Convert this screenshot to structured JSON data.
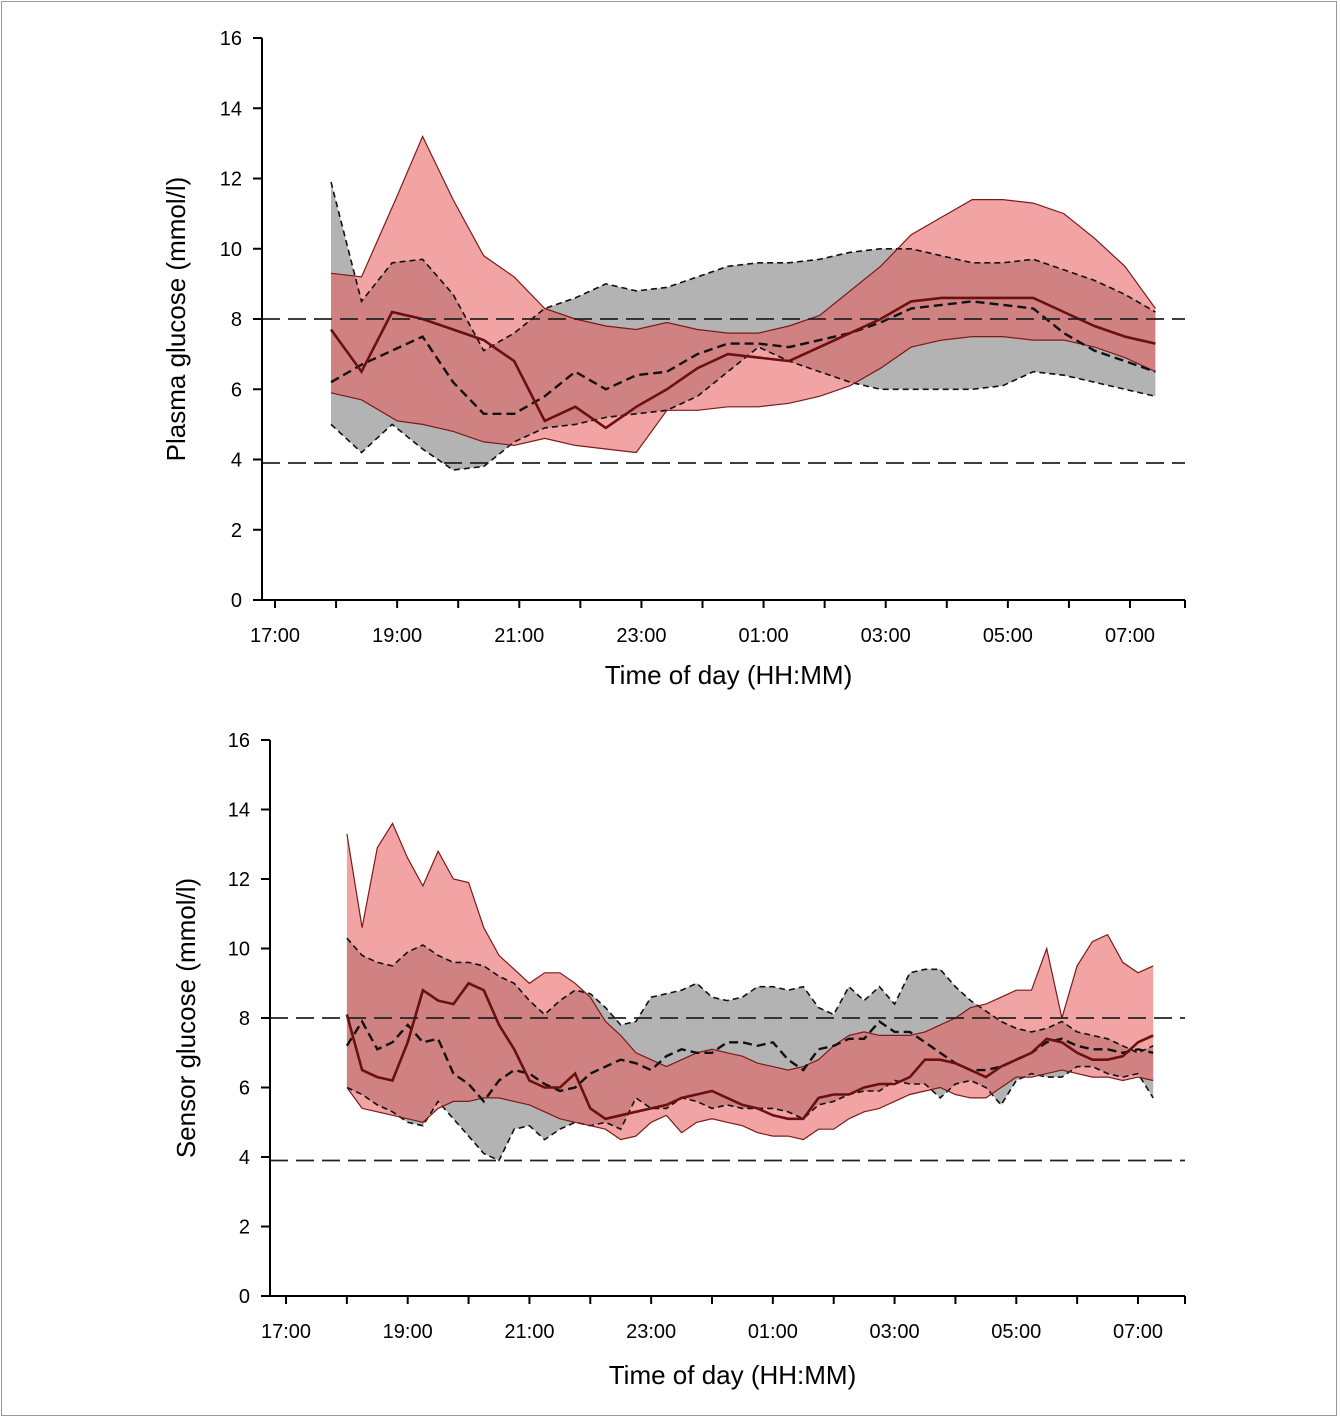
{
  "chart_data": [
    {
      "type": "area",
      "xlabel": "Time of day (HH:MM)",
      "ylabel": "Plasma glucose (mmol/l)",
      "xticks": [
        "17:00",
        "19:00",
        "21:00",
        "23:00",
        "01:00",
        "03:00",
        "05:00",
        "07:00"
      ],
      "yticks": [
        0,
        2,
        4,
        6,
        8,
        10,
        12,
        14,
        16
      ],
      "ylim": [
        0,
        16
      ],
      "reference_lines": [
        8.0,
        3.9
      ],
      "grid": false,
      "colors": {
        "red_band": "#f39a9a",
        "grey_band": "#b3b3b3",
        "overlap": "#b57575",
        "median_line": "#6b0f0f",
        "dashed_line": "#111111"
      },
      "series": [
        {
          "style": "red band (interquartile range)",
          "x": [
            "17:55",
            "18:25",
            "19:00",
            "19:25",
            "19:55",
            "20:25",
            "20:55",
            "21:25",
            "21:55",
            "22:25",
            "22:55",
            "23:25",
            "23:55",
            "00:25",
            "00:55",
            "01:25",
            "01:55",
            "02:25",
            "02:55",
            "03:25",
            "03:55",
            "04:25",
            "04:55",
            "05:25",
            "05:55",
            "06:25",
            "06:55",
            "07:25"
          ],
          "upper": [
            9.3,
            9.2,
            11.5,
            13.2,
            11.4,
            9.8,
            9.2,
            8.3,
            8.0,
            7.8,
            7.7,
            7.9,
            7.7,
            7.6,
            7.6,
            7.8,
            8.1,
            8.8,
            9.5,
            10.4,
            10.9,
            11.4,
            11.4,
            11.3,
            11.0,
            10.3,
            9.5,
            8.3
          ],
          "lower": [
            5.9,
            5.7,
            5.1,
            5.0,
            4.8,
            4.5,
            4.4,
            4.6,
            4.4,
            4.3,
            4.2,
            5.4,
            5.4,
            5.5,
            5.5,
            5.6,
            5.8,
            6.1,
            6.6,
            7.2,
            7.4,
            7.5,
            7.5,
            7.4,
            7.4,
            7.2,
            6.9,
            6.5
          ]
        },
        {
          "style": "red solid line (median)",
          "x": [
            "17:55",
            "18:25",
            "18:55",
            "19:25",
            "19:55",
            "20:25",
            "20:55",
            "21:25",
            "21:55",
            "22:25",
            "22:55",
            "23:25",
            "23:55",
            "00:25",
            "00:55",
            "01:25",
            "01:55",
            "02:25",
            "02:55",
            "03:25",
            "03:55",
            "04:25",
            "04:55",
            "05:25",
            "05:55",
            "06:25",
            "06:55",
            "07:25"
          ],
          "values": [
            7.7,
            6.5,
            8.2,
            8.0,
            7.7,
            7.4,
            6.8,
            5.1,
            5.5,
            4.9,
            5.5,
            6.0,
            6.6,
            7.0,
            6.9,
            6.8,
            7.2,
            7.6,
            8.0,
            8.5,
            8.6,
            8.6,
            8.6,
            8.6,
            8.2,
            7.8,
            7.5,
            7.3
          ]
        },
        {
          "style": "grey band (interquartile range)",
          "x": [
            "17:55",
            "18:25",
            "18:55",
            "19:25",
            "19:55",
            "20:25",
            "20:55",
            "21:25",
            "21:55",
            "22:25",
            "22:55",
            "23:25",
            "23:55",
            "00:25",
            "00:55",
            "01:25",
            "01:55",
            "02:25",
            "02:55",
            "03:25",
            "03:55",
            "04:25",
            "04:55",
            "05:25",
            "05:55",
            "06:25",
            "06:55",
            "07:25"
          ],
          "upper": [
            11.9,
            8.5,
            9.6,
            9.7,
            8.7,
            7.1,
            7.6,
            8.3,
            8.6,
            9.0,
            8.8,
            8.9,
            9.2,
            9.5,
            9.6,
            9.6,
            9.7,
            9.9,
            10.0,
            10.0,
            9.8,
            9.6,
            9.6,
            9.7,
            9.4,
            9.1,
            8.7,
            8.2
          ],
          "lower": [
            5.0,
            4.2,
            5.0,
            4.3,
            3.7,
            3.8,
            4.5,
            4.9,
            5.0,
            5.2,
            5.3,
            5.4,
            5.8,
            6.5,
            7.2,
            6.8,
            6.5,
            6.2,
            6.0,
            6.0,
            6.0,
            6.0,
            6.1,
            6.5,
            6.4,
            6.2,
            6.0,
            5.8
          ]
        },
        {
          "style": "black dashed line (median)",
          "x": [
            "17:55",
            "18:25",
            "18:55",
            "19:25",
            "19:55",
            "20:25",
            "20:55",
            "21:25",
            "21:55",
            "22:25",
            "22:55",
            "23:25",
            "23:55",
            "00:25",
            "00:55",
            "01:25",
            "01:55",
            "02:25",
            "02:55",
            "03:25",
            "03:55",
            "04:25",
            "04:55",
            "05:25",
            "05:55",
            "06:25",
            "06:55",
            "07:25"
          ],
          "values": [
            6.2,
            6.7,
            7.1,
            7.5,
            6.2,
            5.3,
            5.3,
            5.8,
            6.5,
            6.0,
            6.4,
            6.5,
            7.0,
            7.3,
            7.3,
            7.2,
            7.4,
            7.6,
            7.9,
            8.3,
            8.4,
            8.5,
            8.4,
            8.3,
            7.6,
            7.1,
            6.8,
            6.5
          ]
        }
      ]
    },
    {
      "type": "area",
      "xlabel": "Time of day (HH:MM)",
      "ylabel": "Sensor glucose (mmol/l)",
      "xticks": [
        "17:00",
        "19:00",
        "21:00",
        "23:00",
        "01:00",
        "03:00",
        "05:00",
        "07:00"
      ],
      "yticks": [
        0,
        2,
        4,
        6,
        8,
        10,
        12,
        14,
        16
      ],
      "ylim": [
        0,
        16
      ],
      "reference_lines": [
        8.0,
        3.9
      ],
      "grid": false,
      "colors": {
        "red_band": "#f39a9a",
        "grey_band": "#b3b3b3",
        "overlap": "#b57575",
        "median_line": "#6b0f0f",
        "dashed_line": "#111111"
      },
      "series": [
        {
          "style": "red band (interquartile range)",
          "x": [
            "18:00",
            "18:15",
            "18:30",
            "18:45",
            "19:00",
            "19:15",
            "19:30",
            "19:45",
            "20:00",
            "20:15",
            "20:30",
            "20:45",
            "21:00",
            "21:15",
            "21:30",
            "21:45",
            "22:00",
            "22:15",
            "22:30",
            "22:45",
            "23:00",
            "23:15",
            "23:30",
            "23:45",
            "00:00",
            "00:15",
            "00:30",
            "00:45",
            "01:00",
            "01:15",
            "01:30",
            "01:45",
            "02:00",
            "02:15",
            "02:30",
            "02:45",
            "03:00",
            "03:15",
            "03:30",
            "03:45",
            "04:00",
            "04:15",
            "04:30",
            "04:45",
            "05:00",
            "05:15",
            "05:30",
            "05:45",
            "06:00",
            "06:15",
            "06:30",
            "06:45",
            "07:00",
            "07:15"
          ],
          "upper": [
            13.3,
            10.6,
            12.9,
            13.6,
            12.6,
            11.8,
            12.8,
            12.0,
            11.9,
            10.6,
            9.8,
            9.4,
            9.0,
            9.3,
            9.3,
            9.0,
            8.6,
            7.9,
            7.5,
            7.0,
            6.8,
            6.6,
            6.8,
            7.0,
            7.1,
            7.0,
            6.9,
            6.7,
            6.6,
            6.5,
            6.6,
            6.8,
            7.2,
            7.5,
            7.6,
            7.5,
            7.5,
            7.5,
            7.6,
            7.8,
            8.0,
            8.3,
            8.4,
            8.6,
            8.8,
            8.8,
            10.0,
            8.0,
            9.5,
            10.2,
            10.4,
            9.6,
            9.3,
            9.5
          ],
          "lower": [
            6.0,
            5.4,
            5.3,
            5.2,
            5.1,
            5.0,
            5.4,
            5.6,
            5.6,
            5.7,
            5.7,
            5.6,
            5.5,
            5.3,
            5.1,
            5.0,
            4.9,
            4.8,
            4.5,
            4.6,
            5.0,
            5.2,
            4.7,
            5.0,
            5.1,
            5.0,
            4.9,
            4.7,
            4.6,
            4.6,
            4.5,
            4.8,
            4.8,
            5.1,
            5.3,
            5.4,
            5.6,
            5.8,
            5.9,
            6.0,
            5.8,
            5.7,
            5.7,
            6.0,
            6.3,
            6.3,
            6.4,
            6.5,
            6.4,
            6.3,
            6.3,
            6.2,
            6.3,
            6.2
          ]
        },
        {
          "style": "red solid line (median)",
          "x": [
            "18:00",
            "18:15",
            "18:30",
            "18:45",
            "19:00",
            "19:15",
            "19:30",
            "19:45",
            "20:00",
            "20:15",
            "20:30",
            "20:45",
            "21:00",
            "21:15",
            "21:30",
            "21:45",
            "22:00",
            "22:15",
            "22:30",
            "22:45",
            "23:00",
            "23:15",
            "23:30",
            "23:45",
            "00:00",
            "00:15",
            "00:30",
            "00:45",
            "01:00",
            "01:15",
            "01:30",
            "01:45",
            "02:00",
            "02:15",
            "02:30",
            "02:45",
            "03:00",
            "03:15",
            "03:30",
            "03:45",
            "04:00",
            "04:15",
            "04:30",
            "04:45",
            "05:00",
            "05:15",
            "05:30",
            "05:45",
            "06:00",
            "06:15",
            "06:30",
            "06:45",
            "07:00",
            "07:15"
          ],
          "values": [
            8.1,
            6.5,
            6.3,
            6.2,
            7.3,
            8.8,
            8.5,
            8.4,
            9.0,
            8.8,
            7.8,
            7.1,
            6.2,
            6.0,
            6.0,
            6.4,
            5.4,
            5.1,
            5.2,
            5.3,
            5.4,
            5.5,
            5.7,
            5.8,
            5.9,
            5.7,
            5.5,
            5.4,
            5.2,
            5.1,
            5.1,
            5.7,
            5.8,
            5.8,
            6.0,
            6.1,
            6.1,
            6.3,
            6.8,
            6.8,
            6.7,
            6.5,
            6.3,
            6.6,
            6.8,
            7.0,
            7.4,
            7.3,
            7.0,
            6.8,
            6.8,
            6.9,
            7.3,
            7.5
          ]
        },
        {
          "style": "grey band (interquartile range)",
          "x": [
            "18:00",
            "18:15",
            "18:30",
            "18:45",
            "19:00",
            "19:15",
            "19:30",
            "19:45",
            "20:00",
            "20:15",
            "20:30",
            "20:45",
            "21:00",
            "21:15",
            "21:30",
            "21:45",
            "22:00",
            "22:15",
            "22:30",
            "22:45",
            "23:00",
            "23:15",
            "23:30",
            "23:45",
            "00:00",
            "00:15",
            "00:30",
            "00:45",
            "01:00",
            "01:15",
            "01:30",
            "01:45",
            "02:00",
            "02:15",
            "02:30",
            "02:45",
            "03:00",
            "03:15",
            "03:30",
            "03:45",
            "04:00",
            "04:15",
            "04:30",
            "04:45",
            "05:00",
            "05:15",
            "05:30",
            "05:45",
            "06:00",
            "06:15",
            "06:30",
            "06:45",
            "07:00",
            "07:15"
          ],
          "upper": [
            10.3,
            9.8,
            9.6,
            9.5,
            9.9,
            10.1,
            9.8,
            9.6,
            9.6,
            9.5,
            9.2,
            9.0,
            8.5,
            8.1,
            8.5,
            8.8,
            8.7,
            8.3,
            7.8,
            7.9,
            8.6,
            8.7,
            8.8,
            9.0,
            8.6,
            8.5,
            8.6,
            8.9,
            8.9,
            8.8,
            8.9,
            8.3,
            8.1,
            8.9,
            8.5,
            8.9,
            8.4,
            9.3,
            9.4,
            9.4,
            8.9,
            8.5,
            8.2,
            7.9,
            7.7,
            7.6,
            7.7,
            7.9,
            7.6,
            7.5,
            7.4,
            7.2,
            7.0,
            7.2
          ],
          "lower": [
            6.0,
            5.8,
            5.5,
            5.3,
            5.0,
            4.9,
            5.6,
            5.1,
            4.6,
            4.1,
            3.9,
            4.8,
            4.9,
            4.5,
            4.8,
            5.0,
            4.9,
            5.0,
            4.8,
            5.7,
            5.4,
            5.4,
            5.7,
            5.6,
            5.4,
            5.5,
            5.4,
            5.4,
            5.4,
            5.3,
            5.1,
            5.5,
            5.6,
            5.8,
            5.9,
            5.9,
            6.2,
            6.1,
            6.1,
            5.7,
            6.1,
            6.2,
            6.0,
            5.5,
            6.2,
            6.4,
            6.3,
            6.3,
            6.6,
            6.6,
            6.4,
            6.3,
            6.4,
            5.7
          ]
        },
        {
          "style": "black dashed line (median)",
          "x": [
            "18:00",
            "18:15",
            "18:30",
            "18:45",
            "19:00",
            "19:15",
            "19:30",
            "19:45",
            "20:00",
            "20:15",
            "20:30",
            "20:45",
            "21:00",
            "21:15",
            "21:30",
            "21:45",
            "22:00",
            "22:15",
            "22:30",
            "22:45",
            "23:00",
            "23:15",
            "23:30",
            "23:45",
            "00:00",
            "00:15",
            "00:30",
            "00:45",
            "01:00",
            "01:15",
            "01:30",
            "01:45",
            "02:00",
            "02:15",
            "02:30",
            "02:45",
            "03:00",
            "03:15",
            "03:30",
            "03:45",
            "04:00",
            "04:15",
            "04:30",
            "04:45",
            "05:00",
            "05:15",
            "05:30",
            "05:45",
            "06:00",
            "06:15",
            "06:30",
            "06:45",
            "07:00",
            "07:15"
          ],
          "values": [
            7.2,
            7.9,
            7.1,
            7.3,
            7.8,
            7.3,
            7.4,
            6.4,
            6.1,
            5.6,
            6.2,
            6.5,
            6.4,
            6.1,
            5.9,
            6.0,
            6.4,
            6.6,
            6.8,
            6.7,
            6.5,
            6.9,
            7.1,
            7.0,
            7.0,
            7.3,
            7.3,
            7.2,
            7.3,
            6.8,
            6.5,
            7.1,
            7.2,
            7.4,
            7.4,
            7.9,
            7.6,
            7.6,
            7.3,
            7.0,
            6.7,
            6.5,
            6.5,
            6.6,
            6.8,
            7.0,
            7.3,
            7.4,
            7.2,
            7.1,
            7.1,
            7.0,
            7.1,
            7.0
          ]
        }
      ]
    }
  ]
}
